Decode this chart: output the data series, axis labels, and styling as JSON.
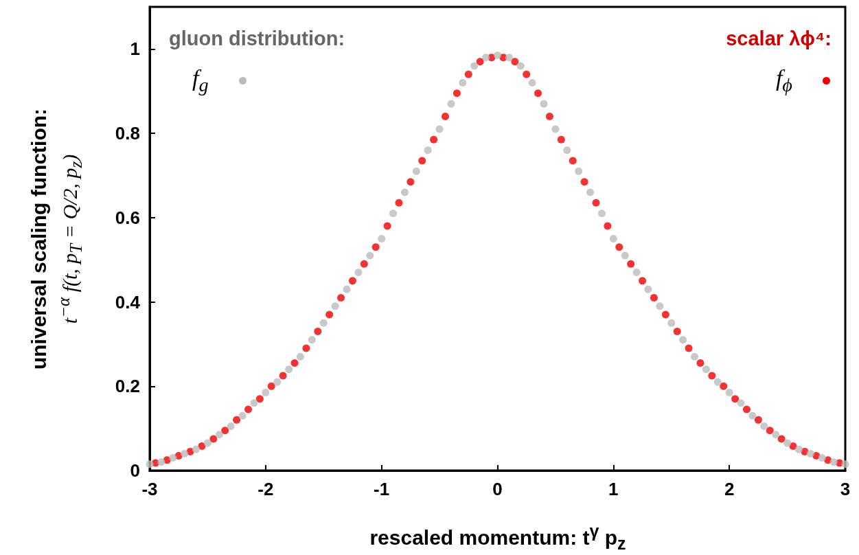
{
  "chart_data": {
    "type": "scatter",
    "xlabel": "rescaled momentum:  t$^{γ}$ p$_{z}$",
    "ylabel": "universal scaling function:\nt$^{−α}$ f(t, p$_{T}$ = Q/2, p$_{z}$)",
    "annotations": [
      "gluon distribution:",
      "scalar λϕ⁴:"
    ],
    "xlim": [
      -3,
      3
    ],
    "xticks": [
      -3,
      -2,
      -1,
      0,
      1,
      2,
      3
    ],
    "ylim": [
      0,
      1.1
    ],
    "yticks": [
      0,
      0.2,
      0.4,
      0.6,
      0.8,
      1
    ],
    "grid": false,
    "legend": "top",
    "marker": "circle",
    "series": [
      {
        "name": "f$_{g}$",
        "color": "#bbbbbb",
        "x": [
          -3,
          -2.9,
          -2.8,
          -2.7,
          -2.6,
          -2.5,
          -2.4,
          -2.3,
          -2.2,
          -2.1,
          -2,
          -1.9,
          -1.8,
          -1.7,
          -1.6,
          -1.5,
          -1.4,
          -1.3,
          -1.2,
          -1.1,
          -1,
          -0.9,
          -0.8,
          -0.7,
          -0.6,
          -0.5,
          -0.4,
          -0.3,
          -0.2,
          -0.1,
          0,
          0.1,
          0.2,
          0.3,
          0.4,
          0.5,
          0.6,
          0.7,
          0.8,
          0.9,
          1,
          1.1,
          1.2,
          1.3,
          1.4,
          1.5,
          1.6,
          1.7,
          1.8,
          1.9,
          2,
          2.1,
          2.2,
          2.3,
          2.4,
          2.5,
          2.6,
          2.7,
          2.8,
          2.9,
          3
        ],
        "values": [
          0.015,
          0.02,
          0.03,
          0.04,
          0.05,
          0.065,
          0.085,
          0.105,
          0.13,
          0.16,
          0.185,
          0.21,
          0.24,
          0.27,
          0.31,
          0.35,
          0.39,
          0.43,
          0.47,
          0.51,
          0.55,
          0.61,
          0.66,
          0.71,
          0.76,
          0.81,
          0.87,
          0.92,
          0.96,
          0.98,
          0.985,
          0.98,
          0.96,
          0.92,
          0.87,
          0.81,
          0.76,
          0.71,
          0.66,
          0.61,
          0.55,
          0.51,
          0.47,
          0.43,
          0.39,
          0.35,
          0.31,
          0.27,
          0.24,
          0.21,
          0.185,
          0.16,
          0.13,
          0.105,
          0.085,
          0.065,
          0.05,
          0.04,
          0.03,
          0.02,
          0.015
        ]
      },
      {
        "name": "f$_{ϕ}$",
        "color": "#ee0000",
        "x": [
          -2.95,
          -2.85,
          -2.75,
          -2.65,
          -2.55,
          -2.45,
          -2.35,
          -2.25,
          -2.15,
          -2.05,
          -1.95,
          -1.85,
          -1.75,
          -1.65,
          -1.55,
          -1.45,
          -1.35,
          -1.25,
          -1.15,
          -1.05,
          -0.95,
          -0.85,
          -0.75,
          -0.65,
          -0.55,
          -0.45,
          -0.35,
          -0.25,
          -0.15,
          -0.05,
          0.05,
          0.15,
          0.25,
          0.35,
          0.45,
          0.55,
          0.65,
          0.75,
          0.85,
          0.95,
          1.05,
          1.15,
          1.25,
          1.35,
          1.45,
          1.55,
          1.65,
          1.75,
          1.85,
          1.95,
          2.05,
          2.15,
          2.25,
          2.35,
          2.45,
          2.55,
          2.65,
          2.75,
          2.85,
          2.95
        ],
        "values": [
          0.018,
          0.025,
          0.035,
          0.045,
          0.058,
          0.075,
          0.095,
          0.12,
          0.145,
          0.17,
          0.2,
          0.225,
          0.255,
          0.29,
          0.33,
          0.37,
          0.41,
          0.45,
          0.49,
          0.53,
          0.58,
          0.635,
          0.685,
          0.735,
          0.785,
          0.84,
          0.895,
          0.94,
          0.97,
          0.98,
          0.98,
          0.97,
          0.94,
          0.895,
          0.84,
          0.785,
          0.735,
          0.685,
          0.635,
          0.58,
          0.53,
          0.49,
          0.45,
          0.41,
          0.37,
          0.33,
          0.29,
          0.255,
          0.225,
          0.2,
          0.17,
          0.145,
          0.12,
          0.095,
          0.075,
          0.058,
          0.045,
          0.035,
          0.025,
          0.018
        ]
      }
    ]
  }
}
